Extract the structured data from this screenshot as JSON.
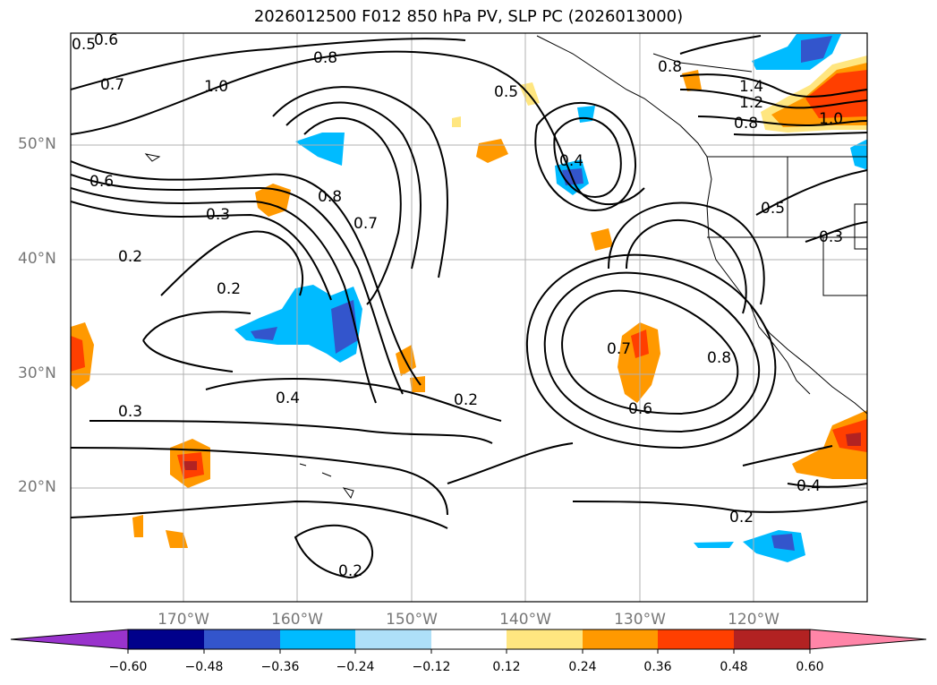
{
  "title": "2026012500 F012 850 hPa PV, SLP PC (2026013000)",
  "map": {
    "lat_labels": [
      "50°N",
      "40°N",
      "30°N",
      "20°N"
    ],
    "lon_labels": [
      "170°W",
      "160°W",
      "150°W",
      "140°W",
      "130°W",
      "120°W"
    ],
    "contour_labels": [
      "0.5",
      "0.6",
      "0.7",
      "1.0",
      "0.8",
      "0.6",
      "0.3",
      "0.2",
      "0.2",
      "0.8",
      "0.7",
      "0.5",
      "0.4",
      "0.8",
      "1.4",
      "1.2",
      "0.8",
      "1.0",
      "0.5",
      "0.3",
      "0.7",
      "0.8",
      "0.6",
      "0.4",
      "0.2",
      "0.3",
      "0.4",
      "0.2",
      "0.2"
    ]
  },
  "colorbar": {
    "ticks": [
      "−0.60",
      "−0.48",
      "−0.36",
      "−0.24",
      "−0.12",
      "0.12",
      "0.24",
      "0.36",
      "0.48",
      "0.60"
    ],
    "colors": [
      "#9933cc",
      "#00008b",
      "#3355cc",
      "#00bbff",
      "#aee0f8",
      "#ffffff",
      "#ffe680",
      "#ff9900",
      "#ff3f00",
      "#b22222",
      "#ff85a8"
    ]
  }
}
